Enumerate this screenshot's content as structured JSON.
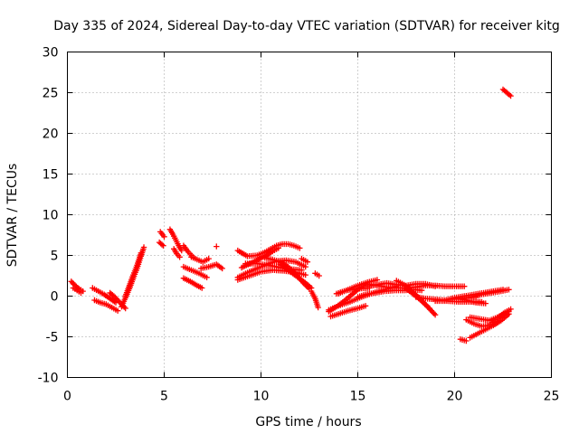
{
  "chart_data": {
    "type": "scatter",
    "title": "Day 335 of 2024, Sidereal Day-to-day VTEC variation (SDTVAR) for receiver kitg",
    "xlabel": "GPS time / hours",
    "ylabel": "SDTVAR / TECUs",
    "xlim": [
      0,
      25
    ],
    "ylim": [
      -10,
      30
    ],
    "xticks": [
      0,
      5,
      10,
      15,
      20,
      25
    ],
    "yticks": [
      -10,
      -5,
      0,
      5,
      10,
      15,
      20,
      25,
      30
    ],
    "grid": true,
    "marker": "+",
    "color": "#ff0000",
    "segments": [
      {
        "x": [
          0.2,
          0.4,
          0.6,
          0.8
        ],
        "y": [
          1.8,
          1.3,
          0.9,
          0.6
        ]
      },
      {
        "x": [
          0.3,
          0.5,
          0.7
        ],
        "y": [
          1.0,
          0.7,
          0.4
        ]
      },
      {
        "x": [
          1.3,
          1.6,
          1.9,
          2.2,
          2.5
        ],
        "y": [
          1.0,
          0.6,
          0.2,
          -0.3,
          -0.8
        ]
      },
      {
        "x": [
          1.4,
          1.7,
          2.0,
          2.3,
          2.6
        ],
        "y": [
          -0.5,
          -0.8,
          -1.0,
          -1.4,
          -1.8
        ]
      },
      {
        "x": [
          2.2,
          2.4,
          2.6,
          2.8,
          3.0
        ],
        "y": [
          0.4,
          0.0,
          -0.5,
          -1.0,
          -1.5
        ]
      },
      {
        "x": [
          2.8,
          3.0,
          3.2,
          3.4,
          3.6,
          3.8,
          3.95
        ],
        "y": [
          -1.3,
          -0.2,
          0.9,
          2.2,
          3.4,
          4.9,
          6.0
        ]
      },
      {
        "x": [
          3.0,
          3.2,
          3.4,
          3.6,
          3.8
        ],
        "y": [
          0.0,
          1.3,
          2.6,
          3.8,
          5.3
        ]
      },
      {
        "x": [
          4.8,
          5.0
        ],
        "y": [
          7.9,
          7.3
        ]
      },
      {
        "x": [
          4.75,
          4.95
        ],
        "y": [
          6.6,
          6.2
        ]
      },
      {
        "x": [
          5.3,
          5.45,
          5.6,
          5.75,
          5.9
        ],
        "y": [
          8.2,
          7.6,
          6.9,
          6.2,
          5.6
        ]
      },
      {
        "x": [
          5.5,
          5.65,
          5.8
        ],
        "y": [
          5.8,
          5.2,
          4.8
        ]
      },
      {
        "x": [
          6.0,
          6.25,
          6.5
        ],
        "y": [
          6.2,
          5.4,
          4.8
        ]
      },
      {
        "x": [
          6.4,
          6.7,
          7.0,
          7.3
        ],
        "y": [
          4.8,
          4.5,
          4.2,
          4.6
        ]
      },
      {
        "x": [
          7.7
        ],
        "y": [
          6.1
        ]
      },
      {
        "x": [
          6.0,
          6.4,
          6.8,
          7.2
        ],
        "y": [
          3.6,
          3.2,
          2.8,
          2.3
        ]
      },
      {
        "x": [
          6.9,
          7.3,
          7.7,
          8.0
        ],
        "y": [
          3.4,
          3.6,
          3.9,
          3.4
        ]
      },
      {
        "x": [
          6.0,
          6.35,
          6.7,
          6.95
        ],
        "y": [
          2.2,
          1.8,
          1.3,
          1.0
        ]
      },
      {
        "x": [
          8.8,
          9.3,
          9.8,
          10.2,
          10.5,
          10.8,
          11.1,
          11.4,
          11.7,
          12.0
        ],
        "y": [
          5.6,
          4.9,
          5.0,
          5.4,
          5.8,
          6.2,
          6.4,
          6.4,
          6.2,
          5.9
        ]
      },
      {
        "x": [
          9.0,
          9.6,
          10.2,
          10.6,
          10.9
        ],
        "y": [
          3.5,
          4.2,
          4.9,
          5.5,
          5.9
        ]
      },
      {
        "x": [
          8.8,
          9.3,
          9.8,
          10.3,
          10.8,
          11.3,
          11.8,
          12.3
        ],
        "y": [
          2.3,
          2.9,
          3.4,
          3.9,
          4.3,
          4.4,
          4.2,
          3.6
        ]
      },
      {
        "x": [
          8.8,
          9.4,
          10.0,
          10.6,
          11.2,
          11.8,
          12.3
        ],
        "y": [
          2.0,
          2.5,
          3.0,
          3.2,
          3.1,
          2.9,
          2.6
        ]
      },
      {
        "x": [
          9.2,
          9.8,
          10.4,
          11.0,
          11.6,
          12.1
        ],
        "y": [
          4.0,
          4.0,
          3.8,
          3.5,
          3.3,
          3.2
        ]
      },
      {
        "x": [
          10.2,
          10.6,
          11.0,
          11.4,
          11.8,
          12.2,
          12.5
        ],
        "y": [
          4.7,
          4.5,
          4.2,
          3.6,
          2.7,
          1.6,
          0.9
        ]
      },
      {
        "x": [
          11.0,
          11.4,
          11.8,
          12.2,
          12.6
        ],
        "y": [
          3.9,
          3.2,
          2.5,
          1.8,
          1.0
        ]
      },
      {
        "x": [
          12.1,
          12.4
        ],
        "y": [
          4.6,
          4.2
        ]
      },
      {
        "x": [
          12.6,
          12.8,
          12.95
        ],
        "y": [
          0.6,
          -0.3,
          -1.4
        ]
      },
      {
        "x": [
          12.8,
          13.0
        ],
        "y": [
          2.8,
          2.5
        ]
      },
      {
        "x": [
          13.5,
          13.9,
          14.3,
          14.7,
          15.1,
          15.4
        ],
        "y": [
          -1.9,
          -1.3,
          -0.6,
          0.2,
          1.0,
          1.4
        ]
      },
      {
        "x": [
          13.6,
          14.0,
          14.5,
          15.0,
          15.4
        ],
        "y": [
          -2.5,
          -2.2,
          -1.8,
          -1.5,
          -1.2
        ]
      },
      {
        "x": [
          13.5,
          14.0,
          14.6,
          15.2,
          15.8,
          16.4,
          17.0
        ],
        "y": [
          -1.7,
          -1.2,
          -0.7,
          -0.1,
          0.4,
          0.8,
          1.2
        ]
      },
      {
        "x": [
          13.9,
          14.4,
          15.0,
          15.6
        ],
        "y": [
          0.3,
          0.7,
          0.9,
          1.0
        ]
      },
      {
        "x": [
          14.0,
          14.5,
          15.0,
          15.5,
          16.0
        ],
        "y": [
          0.3,
          0.8,
          1.3,
          1.7,
          2.0
        ]
      },
      {
        "x": [
          15.5,
          16.0,
          16.5,
          17.0,
          17.5,
          18.0,
          18.5,
          19.0,
          19.5,
          20.0,
          20.5
        ],
        "y": [
          1.5,
          1.3,
          1.1,
          1.0,
          1.0,
          1.1,
          1.3,
          1.3,
          1.2,
          1.2,
          1.2
        ]
      },
      {
        "x": [
          15.5,
          16.0,
          16.5,
          17.0,
          17.5,
          18.0,
          18.5,
          19.0
        ],
        "y": [
          1.2,
          1.4,
          1.6,
          1.4,
          1.3,
          1.5,
          1.5,
          1.2
        ]
      },
      {
        "x": [
          15.0,
          15.4,
          15.9,
          16.4,
          16.9,
          17.4,
          17.9,
          18.3
        ],
        "y": [
          -0.1,
          0.2,
          0.4,
          0.6,
          0.7,
          0.7,
          0.8,
          0.7
        ]
      },
      {
        "x": [
          17.0,
          17.4,
          17.8,
          18.2,
          18.6,
          19.0
        ],
        "y": [
          1.9,
          1.4,
          0.6,
          -0.3,
          -1.3,
          -2.3
        ]
      },
      {
        "x": [
          17.5,
          17.9,
          18.3,
          18.7
        ],
        "y": [
          0.9,
          0.2,
          -0.6,
          -1.5
        ]
      },
      {
        "x": [
          18.0,
          18.5,
          19.0,
          19.5,
          20.0,
          20.5,
          21.0,
          21.5,
          22.0,
          22.5
        ],
        "y": [
          -0.1,
          -0.3,
          -0.4,
          -0.5,
          -0.2,
          0.0,
          0.2,
          0.4,
          0.6,
          0.8
        ]
      },
      {
        "x": [
          19.0,
          19.6,
          20.2,
          20.8,
          21.4
        ],
        "y": [
          -0.6,
          -0.6,
          -0.7,
          -0.7,
          -0.7
        ]
      },
      {
        "x": [
          20.2,
          20.6,
          21.1,
          21.6
        ],
        "y": [
          -0.3,
          -0.5,
          -0.8,
          -0.9
        ]
      },
      {
        "x": [
          19.9,
          20.3,
          20.7,
          21.1
        ],
        "y": [
          -0.4,
          -0.3,
          -0.2,
          -0.1
        ]
      },
      {
        "x": [
          20.4,
          20.9,
          21.4,
          21.9,
          22.4,
          22.8
        ],
        "y": [
          -0.3,
          -0.1,
          0.2,
          0.4,
          0.6,
          0.8
        ]
      },
      {
        "x": [
          20.6,
          21.0,
          21.4,
          21.8,
          22.2,
          22.6,
          22.9
        ],
        "y": [
          -2.9,
          -3.4,
          -3.7,
          -3.6,
          -2.7,
          -2.0,
          -1.6
        ]
      },
      {
        "x": [
          20.8,
          21.3,
          21.8,
          22.3,
          22.8
        ],
        "y": [
          -2.6,
          -2.8,
          -3.0,
          -2.5,
          -1.9
        ]
      },
      {
        "x": [
          20.3,
          20.6
        ],
        "y": [
          -5.3,
          -5.5
        ]
      },
      {
        "x": [
          20.8,
          21.2,
          21.6,
          22.0,
          22.4,
          22.8
        ],
        "y": [
          -5.1,
          -4.6,
          -4.1,
          -3.6,
          -3.0,
          -2.2
        ]
      },
      {
        "x": [
          22.5,
          22.7,
          22.9
        ],
        "y": [
          25.4,
          25.0,
          24.6
        ]
      }
    ]
  }
}
